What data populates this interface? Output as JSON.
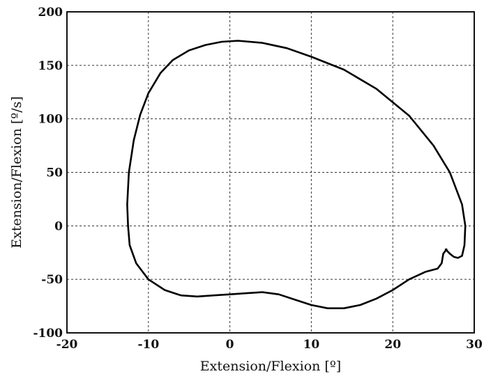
{
  "chart_data": {
    "type": "line",
    "title": "",
    "xlabel": "Extension/Flexion [º]",
    "ylabel": "Extension/Flexion [º/s]",
    "xlim": [
      -20,
      30
    ],
    "ylim": [
      -100,
      200
    ],
    "x_ticks": [
      -20,
      -10,
      0,
      10,
      20,
      30
    ],
    "y_ticks": [
      -100,
      -50,
      0,
      50,
      100,
      150,
      200
    ],
    "grid": true,
    "series": [
      {
        "color": "#000000",
        "points": [
          [
            26.5,
            -22
          ],
          [
            27.0,
            -26
          ],
          [
            27.5,
            -29
          ],
          [
            28.0,
            -30
          ],
          [
            28.5,
            -28
          ],
          [
            28.8,
            -18
          ],
          [
            28.9,
            0
          ],
          [
            28.5,
            20
          ],
          [
            27.0,
            50
          ],
          [
            25.0,
            75
          ],
          [
            22.0,
            103
          ],
          [
            18.0,
            128
          ],
          [
            14.0,
            146
          ],
          [
            10.0,
            158
          ],
          [
            7.0,
            166
          ],
          [
            4.0,
            171
          ],
          [
            1.0,
            173
          ],
          [
            -1.0,
            172
          ],
          [
            -3.0,
            169
          ],
          [
            -5.0,
            164
          ],
          [
            -7.0,
            155
          ],
          [
            -8.5,
            143
          ],
          [
            -10.0,
            124
          ],
          [
            -11.0,
            104
          ],
          [
            -11.8,
            80
          ],
          [
            -12.4,
            50
          ],
          [
            -12.6,
            20
          ],
          [
            -12.5,
            0
          ],
          [
            -12.3,
            -18
          ],
          [
            -11.5,
            -35
          ],
          [
            -10.0,
            -50
          ],
          [
            -8.0,
            -60
          ],
          [
            -6.0,
            -65
          ],
          [
            -4.0,
            -66
          ],
          [
            -2.0,
            -65
          ],
          [
            0.0,
            -64
          ],
          [
            2.0,
            -63
          ],
          [
            4.0,
            -62
          ],
          [
            6.0,
            -64
          ],
          [
            8.0,
            -69
          ],
          [
            10.0,
            -74
          ],
          [
            12.0,
            -77
          ],
          [
            14.0,
            -77
          ],
          [
            16.0,
            -74
          ],
          [
            18.0,
            -68
          ],
          [
            20.0,
            -60
          ],
          [
            22.0,
            -50
          ],
          [
            24.0,
            -43
          ],
          [
            25.5,
            -40
          ],
          [
            26.0,
            -35
          ],
          [
            26.2,
            -26
          ],
          [
            26.6,
            -22
          ]
        ]
      }
    ]
  }
}
